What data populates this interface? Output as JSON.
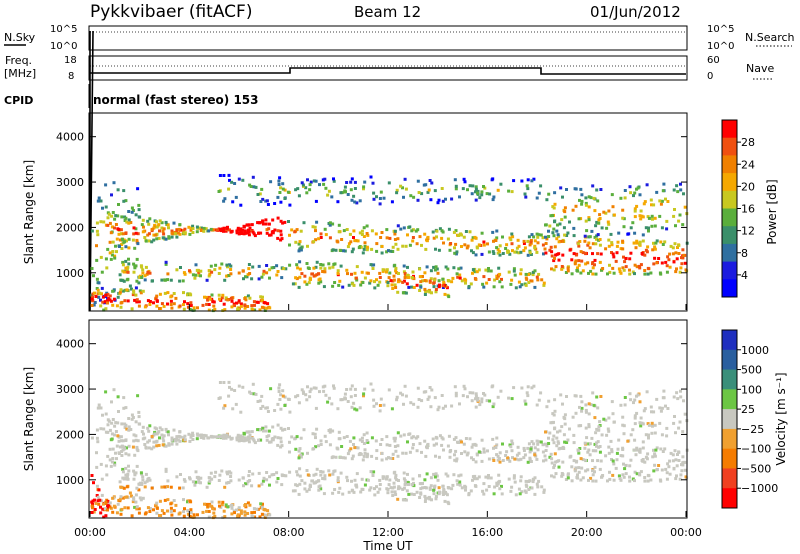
{
  "header": {
    "station": "Pykkvibaer (fitACF)",
    "beam": "Beam 12",
    "date": "01/Jun/2012"
  },
  "noise_panel": {
    "left_label": "N.Sky",
    "right_label": "N.Search",
    "ticks": [
      "10^5",
      "10^0"
    ]
  },
  "freq_panel": {
    "left_label_1": "Freq.",
    "left_label_2": "[MHz]",
    "left_ticks": [
      "18",
      "8"
    ],
    "right_label": "Nave",
    "right_ticks": [
      "60",
      "0"
    ]
  },
  "cpid": {
    "label": "CPID",
    "text": "normal (fast stereo) 153"
  },
  "chart_data": [
    {
      "type": "heatmap",
      "title": "",
      "quantity": "Power",
      "xlabel": "",
      "ylabel": "Slant Range [km]",
      "y_ticks": [
        "1000",
        "2000",
        "3000",
        "4000"
      ],
      "ylim": [
        180,
        4500
      ],
      "colorbar_label": "Power [dB]",
      "colorbar_ticks": [
        "28",
        "24",
        "20",
        "16",
        "12",
        "8",
        "4"
      ],
      "colors": [
        "#1b1bdf",
        "#2f4f9c",
        "#3a7d6e",
        "#4caf50",
        "#a8c93a",
        "#f2b705",
        "#f57c00",
        "#e53020",
        "#ff0000"
      ]
    },
    {
      "type": "heatmap",
      "title": "",
      "quantity": "Velocity",
      "xlabel": "Time UT",
      "ylabel": "Slant Range [km]",
      "x_ticks": [
        "00:00",
        "04:00",
        "08:00",
        "12:00",
        "16:00",
        "20:00",
        "00:00"
      ],
      "y_ticks": [
        "1000",
        "2000",
        "3000",
        "4000"
      ],
      "ylim": [
        180,
        4500
      ],
      "colorbar_label": "Velocity [m s⁻¹]",
      "colorbar_ticks": [
        "1000",
        "500",
        "100",
        "25",
        "−25",
        "−100",
        "−500",
        "−1000"
      ],
      "colors": [
        "#1f3fbf",
        "#2e6b8e",
        "#3a8f5a",
        "#6cc644",
        "#c8c8c0",
        "#f0a030",
        "#f58a1f",
        "#f04020",
        "#ff0000"
      ]
    }
  ],
  "x_axis": {
    "label": "Time UT",
    "ticks": [
      "00:00",
      "04:00",
      "08:00",
      "12:00",
      "16:00",
      "20:00",
      "00:00"
    ]
  },
  "colors": {
    "power_bar": [
      "#ff0000",
      "#f05010",
      "#f08000",
      "#f5a800",
      "#c8c820",
      "#5aae3c",
      "#3a8f6a",
      "#2f6fa0",
      "#1b1bdf",
      "#0000ff"
    ],
    "velocity_bar": [
      "#1f2fbf",
      "#2a5f9f",
      "#3a8f7a",
      "#6cc644",
      "#c8c8c0",
      "#f0a030",
      "#f57c00",
      "#f04020",
      "#ff0000"
    ]
  }
}
